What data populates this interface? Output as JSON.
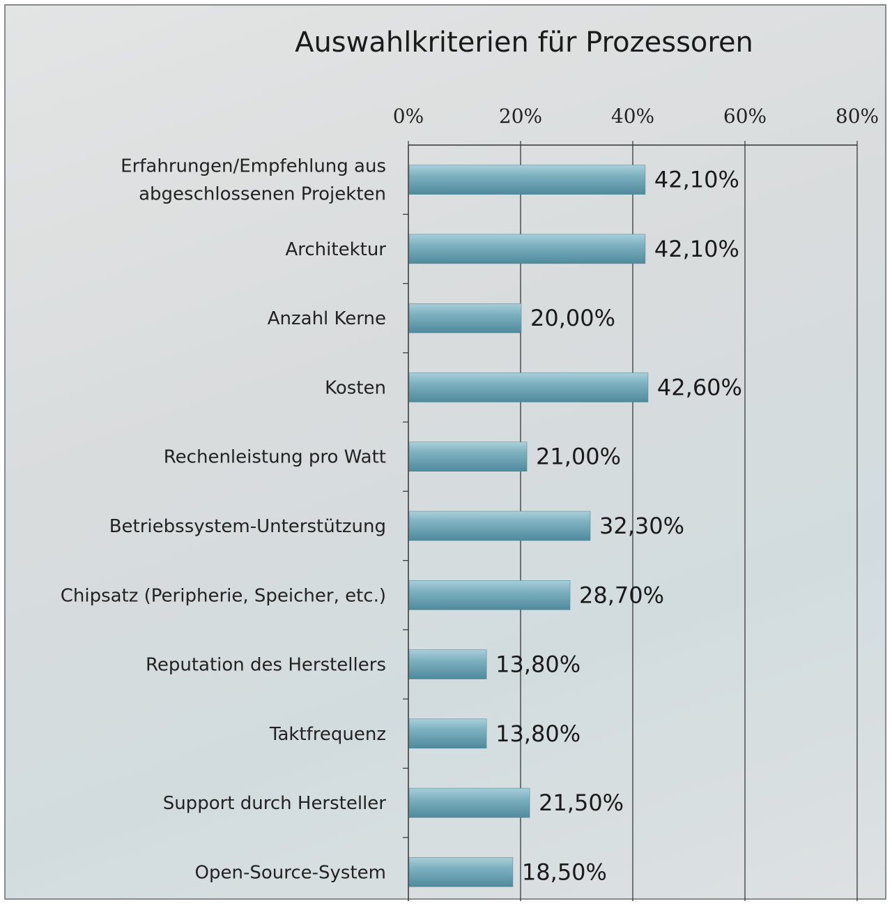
{
  "chart_data": {
    "type": "bar",
    "orientation": "horizontal",
    "title": "Auswahlkriterien für Prozessoren",
    "xlim": [
      0,
      80
    ],
    "ticks": [
      0,
      20,
      40,
      60,
      80
    ],
    "tick_labels": [
      "0%",
      "20%",
      "40%",
      "60%",
      "80%"
    ],
    "axis_position": "top",
    "grid": true,
    "categories": [
      [
        "Erfahrungen/Empfehlung aus",
        "abgeschlossenen Projekten"
      ],
      [
        "Architektur"
      ],
      [
        "Anzahl Kerne"
      ],
      [
        "Kosten"
      ],
      [
        "Rechenleistung pro Watt"
      ],
      [
        "Betriebssystem-Unterstützung"
      ],
      [
        "Chipsatz (Peripherie, Speicher, etc.)"
      ],
      [
        "Reputation des Herstellers"
      ],
      [
        "Taktfrequenz"
      ],
      [
        "Support durch Hersteller"
      ],
      [
        "Open-Source-System"
      ]
    ],
    "values": [
      42.1,
      42.1,
      20.0,
      42.6,
      21.0,
      32.3,
      28.7,
      13.8,
      13.8,
      21.5,
      18.5
    ],
    "data_labels": [
      "42,10%",
      "42,10%",
      "20,00%",
      "42,60%",
      "21,00%",
      "32,30%",
      "28,70%",
      "13,80%",
      "13,80%",
      "21,50%",
      "18,50%"
    ],
    "bar_color": "#6fa6b6"
  }
}
